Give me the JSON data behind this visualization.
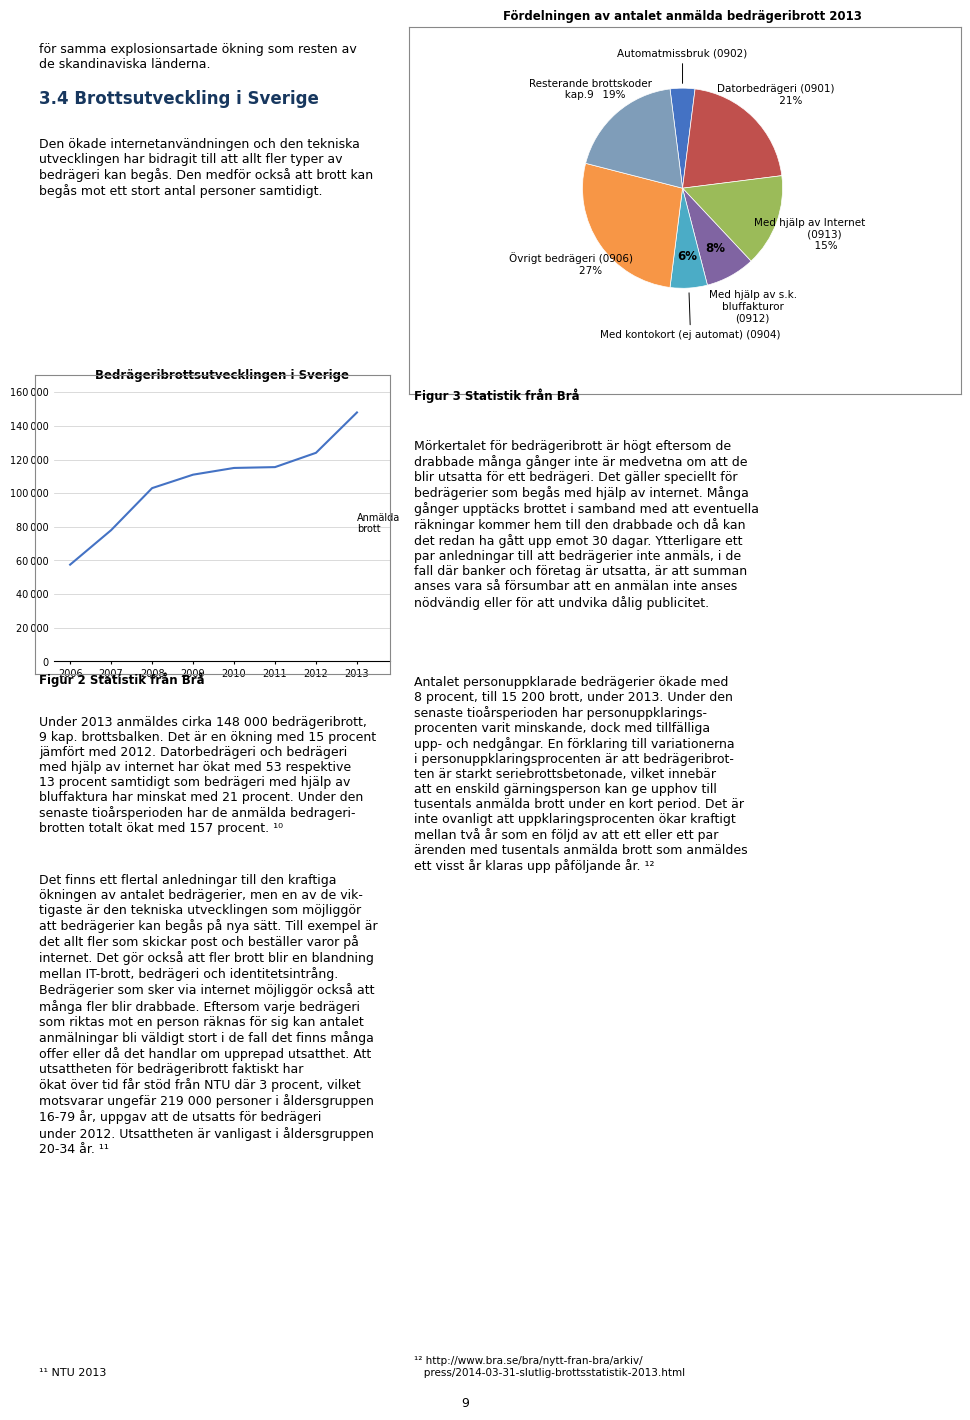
{
  "pie_title": "Fördelningen av antalet anmälda bedrägeribrott 2013",
  "pie_slices": [
    {
      "label": "Automatmissbruk (0902)",
      "pct": 4,
      "color": "#4472C4",
      "bold_pct": false
    },
    {
      "label": "Datorbedrägeri (0901)",
      "pct": 21,
      "color": "#C0504D",
      "bold_pct": true
    },
    {
      "label": "Med hjälp av Internet\n(0913)",
      "pct": 15,
      "color": "#9BBB59",
      "bold_pct": true
    },
    {
      "label": "Med hjälp av s.k.\nbluffakturor\n(0912)",
      "pct": 8,
      "color": "#8064A2",
      "bold_pct": true
    },
    {
      "label": "Med kontokort (ej automat) (0904)",
      "pct": 6,
      "color": "#4BACC6",
      "bold_pct": true
    },
    {
      "label": "Övrigt bedrägeri (0906)",
      "pct": 27,
      "color": "#F79646",
      "bold_pct": true
    },
    {
      "label": "Resterande brottskoder\nkap.9",
      "pct": 19,
      "color": "#7F9DB9",
      "bold_pct": true
    }
  ],
  "line_title": "Bedrägeribrottsutvecklingen i Sverige",
  "line_years": [
    2006,
    2007,
    2008,
    2009,
    2010,
    2011,
    2012,
    2013
  ],
  "line_values": [
    57500,
    78000,
    103000,
    111000,
    115000,
    115500,
    124000,
    148000
  ],
  "line_color": "#4472C4",
  "line_label": "Anmälda\nbrott",
  "yticks": [
    0,
    20000,
    40000,
    60000,
    80000,
    100000,
    120000,
    140000,
    160000
  ],
  "ytick_labels": [
    "0",
    "20 000",
    "40 000",
    "60 000",
    "80 000",
    "100 000",
    "120 000",
    "140 000",
    "160 000"
  ],
  "fig2_caption": "Figur 2 Statistik från Brå",
  "fig3_caption": "Figur 3 Statistik från Brå",
  "text_col1_blocks": [
    {
      "text": "för samma explosionsartade ökning som resten av\nde skandinaviska länderna.",
      "fontsize": 10,
      "style": "normal"
    },
    {
      "text": "3.4 Brottsutveckling i Sverige",
      "fontsize": 13,
      "style": "bold",
      "color": "#17375E"
    },
    {
      "text": "Den ökade internetanvändningen och den tekniska\nutvecklingen har bidragit till att allt fler typer av\nbedrageri kan begås. Den medför också att brott kan\nbegås mot ett stort antal personer samtidigt.",
      "fontsize": 10,
      "style": "normal"
    }
  ],
  "text_col2_blocks": [
    {
      "text": "Mörtalet för bedrägeribrott är högt eftersom de\ndrabbade många gånger inte är medvetna om att de\nbli utsatta för ett bedrägeri.",
      "fontsize": 10,
      "style": "normal"
    }
  ],
  "border_color": "#AAAAAA",
  "page_bg": "#FFFFFF"
}
